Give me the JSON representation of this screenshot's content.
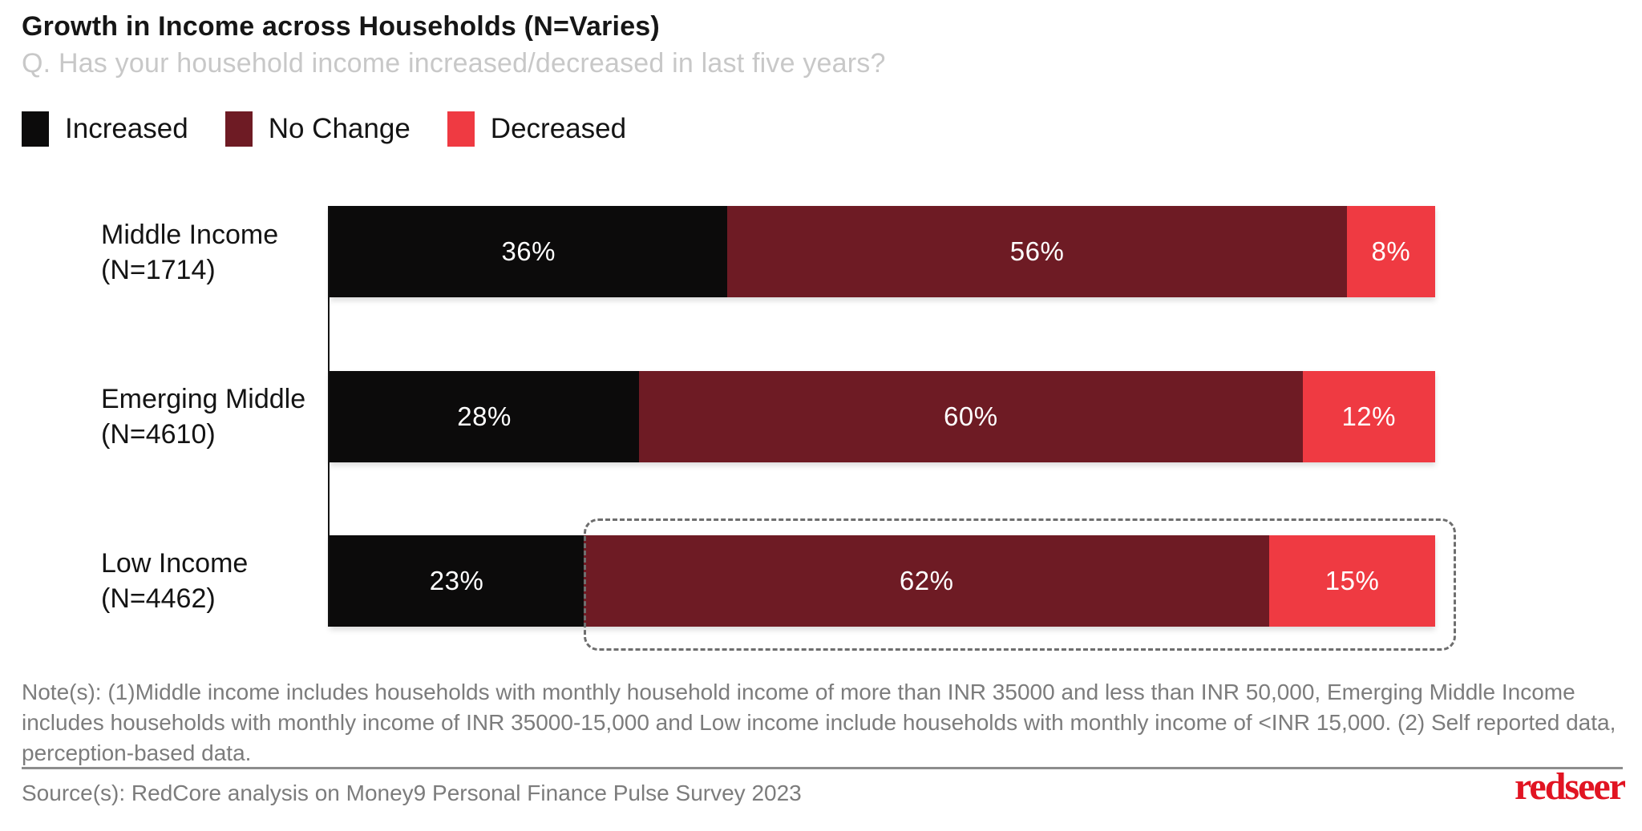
{
  "header": {
    "title": "Growth in Income across Households (N=Varies)",
    "subtitle": "Q. Has your household income increased/decreased in last five years?"
  },
  "legend": [
    {
      "label": "Increased",
      "color": "#0c0b0b"
    },
    {
      "label": "No Change",
      "color": "#6e1b24"
    },
    {
      "label": "Decreased",
      "color": "#ef3a42"
    }
  ],
  "chart_data": {
    "type": "bar",
    "orientation": "horizontal-stacked",
    "unit": "%",
    "title": "Growth in Income across Households (N=Varies)",
    "categories": [
      "Middle Income (N=1714)",
      "Emerging Middle (N=4610)",
      "Low Income (N=4462)"
    ],
    "category_lines": [
      [
        "Middle Income",
        "(N=1714)"
      ],
      [
        "Emerging Middle",
        "(N=4610)"
      ],
      [
        "Low Income",
        "(N=4462)"
      ]
    ],
    "series": [
      {
        "name": "Increased",
        "color": "#0c0b0b",
        "values": [
          36,
          28,
          23
        ]
      },
      {
        "name": "No Change",
        "color": "#6e1b24",
        "values": [
          56,
          60,
          62
        ]
      },
      {
        "name": "Decreased",
        "color": "#ef3a42",
        "values": [
          8,
          12,
          15
        ]
      }
    ],
    "xlim": [
      0,
      100
    ],
    "value_label_format": "{v}%",
    "grid": "off",
    "legend_position": "top-left",
    "highlight": {
      "category": "Low Income (N=4462)",
      "segments": [
        "No Change",
        "Decreased"
      ],
      "style": "dashed-box"
    }
  },
  "notes": "Note(s): (1)Middle income includes households with monthly household income of more than INR 35000 and less than INR 50,000, Emerging Middle Income includes households with monthly income of INR 35000-15,000 and Low income include households with monthly income of  <INR 15,000. (2) Self reported data, perception-based data.",
  "source": "Source(s): RedCore analysis on Money9 Personal Finance Pulse Survey 2023",
  "branding": {
    "logo_text": "redseer",
    "logo_color": "#e11422"
  }
}
